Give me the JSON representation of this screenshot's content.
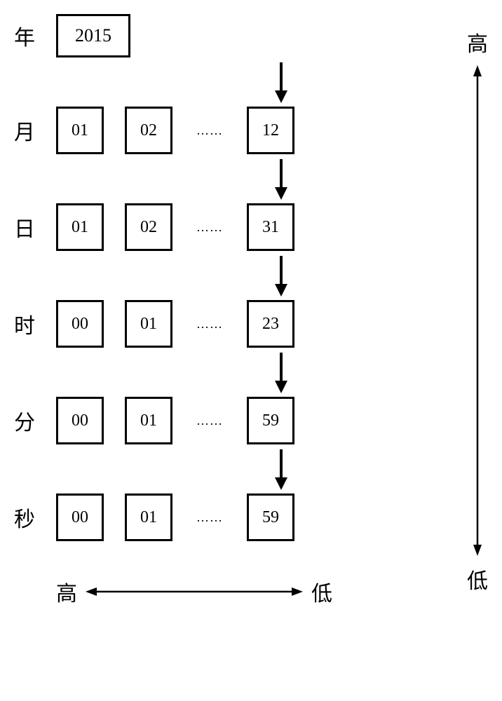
{
  "type": "tree",
  "background_color": "#ffffff",
  "box_border_color": "#000000",
  "box_border_width": 3,
  "font_family_label": "SimSun",
  "font_family_value": "Times New Roman",
  "label_fontsize": 30,
  "value_fontsize": 24,
  "arrow_color": "#000000",
  "rows": [
    {
      "label": "年",
      "values": [
        "2015"
      ],
      "last": "",
      "dots": false,
      "year": true
    },
    {
      "label": "月",
      "values": [
        "01",
        "02"
      ],
      "last": "12",
      "dots": true,
      "year": false
    },
    {
      "label": "日",
      "values": [
        "01",
        "02"
      ],
      "last": "31",
      "dots": true,
      "year": false
    },
    {
      "label": "时",
      "values": [
        "00",
        "01"
      ],
      "last": "23",
      "dots": true,
      "year": false
    },
    {
      "label": "分",
      "values": [
        "00",
        "01"
      ],
      "last": "59",
      "dots": true,
      "year": false
    },
    {
      "label": "秒",
      "values": [
        "00",
        "01"
      ],
      "last": "59",
      "dots": true,
      "year": false
    }
  ],
  "dots_text": "……",
  "right_axis": {
    "top": "高",
    "bottom": "低"
  },
  "bottom_axis": {
    "left": "高",
    "right": "低"
  },
  "h_arrow_length": 310,
  "v_arrow_length": 700
}
